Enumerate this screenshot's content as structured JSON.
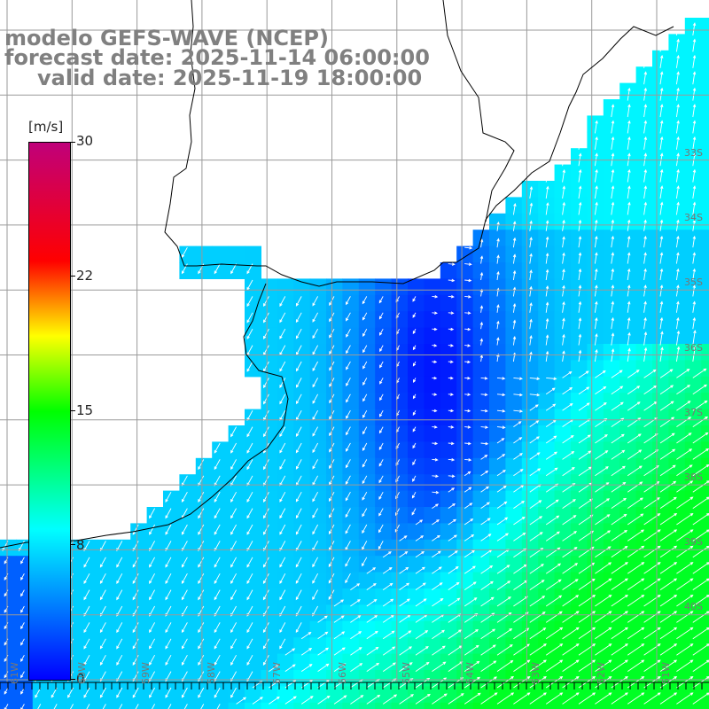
{
  "title": {
    "line1": "modelo GEFS-WAVE (NCEP)",
    "line2": "forecast date: 2025-11-14 06:00:00",
    "line3": "valid date: 2025-11-19 18:00:00"
  },
  "colorbar": {
    "unit": "[m/s]",
    "ticks": [
      "30",
      "22",
      "15",
      "8",
      "0"
    ],
    "colors": [
      "#0000ff",
      "#00ffff",
      "#00ff00",
      "#ffff00",
      "#ff0000",
      "#c0007a"
    ]
  },
  "map": {
    "lon_labels": [
      "61W",
      "60W",
      "59W",
      "58W",
      "57W",
      "56W",
      "55W",
      "54W",
      "53W",
      "52W",
      "51W"
    ],
    "lat_labels": [
      "33S",
      "34S",
      "35S",
      "36S",
      "37S",
      "38S",
      "39S",
      "40S"
    ],
    "land_color": "#ffffff",
    "grid_color": "#9a9a9a"
  }
}
